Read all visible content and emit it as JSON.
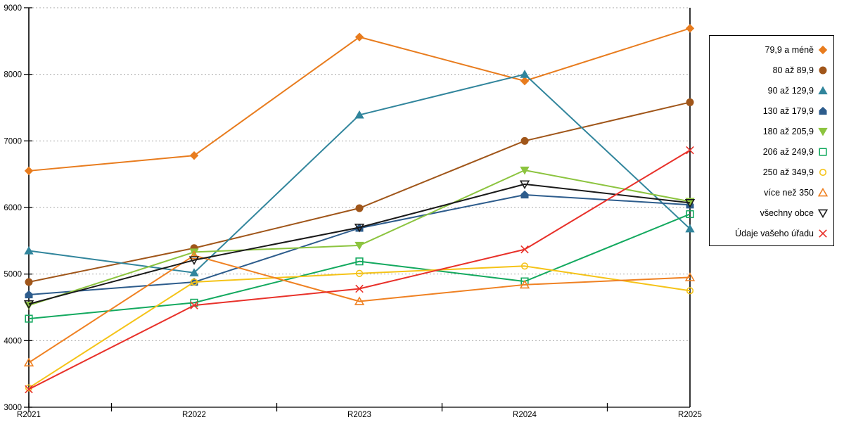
{
  "chart_data": {
    "type": "line",
    "categories": [
      "R2021",
      "R2022",
      "R2023",
      "R2024",
      "R2025"
    ],
    "series": [
      {
        "name": "79,9 a méně",
        "marker": "diamond",
        "filled": true,
        "color": "#E87C1E",
        "values": [
          6550,
          6780,
          8560,
          7900,
          8690
        ]
      },
      {
        "name": "80 až 89,9",
        "marker": "circle",
        "filled": true,
        "color": "#A0561A",
        "values": [
          4880,
          5390,
          5990,
          7000,
          7580
        ]
      },
      {
        "name": "90 až 129,9",
        "marker": "triangle-up",
        "filled": true,
        "color": "#31859C",
        "values": [
          5350,
          5020,
          7390,
          8000,
          5680
        ]
      },
      {
        "name": "130 až 179,9",
        "marker": "pentagon",
        "filled": true,
        "color": "#2D5C8C",
        "values": [
          4690,
          4880,
          5690,
          6190,
          6040
        ]
      },
      {
        "name": "180 až 205,9",
        "marker": "triangle-down",
        "filled": true,
        "color": "#8CC43F",
        "values": [
          4530,
          5330,
          5430,
          6560,
          6090
        ]
      },
      {
        "name": "206 až 249,9",
        "marker": "square",
        "filled": false,
        "color": "#13A95F",
        "values": [
          4330,
          4570,
          5190,
          4890,
          5900
        ]
      },
      {
        "name": "250 až 349,9",
        "marker": "circle",
        "filled": false,
        "color": "#F5C318",
        "values": [
          3290,
          4880,
          5010,
          5120,
          4750
        ]
      },
      {
        "name": "více než 350",
        "marker": "triangle-up",
        "filled": false,
        "color": "#EF8122",
        "values": [
          3670,
          5280,
          4590,
          4840,
          4950
        ]
      },
      {
        "name": "všechny obce",
        "marker": "triangle-down",
        "filled": false,
        "color": "#1A1A1A",
        "values": [
          4550,
          5210,
          5700,
          6350,
          6070
        ]
      },
      {
        "name": "Údaje vašeho úřadu",
        "marker": "x",
        "filled": false,
        "color": "#E8312A",
        "values": [
          3270,
          4530,
          4780,
          5370,
          6860
        ]
      }
    ],
    "ylim": [
      3000,
      9000
    ],
    "ytick_step": 1000,
    "ytick_labels": [
      "3000",
      "4000",
      "5000",
      "6000",
      "7000",
      "8000",
      "9000"
    ],
    "grid": "horizontal-dotted",
    "grid_color": "#AAAAAA",
    "axis_color": "#000000",
    "legend_position": "right"
  }
}
